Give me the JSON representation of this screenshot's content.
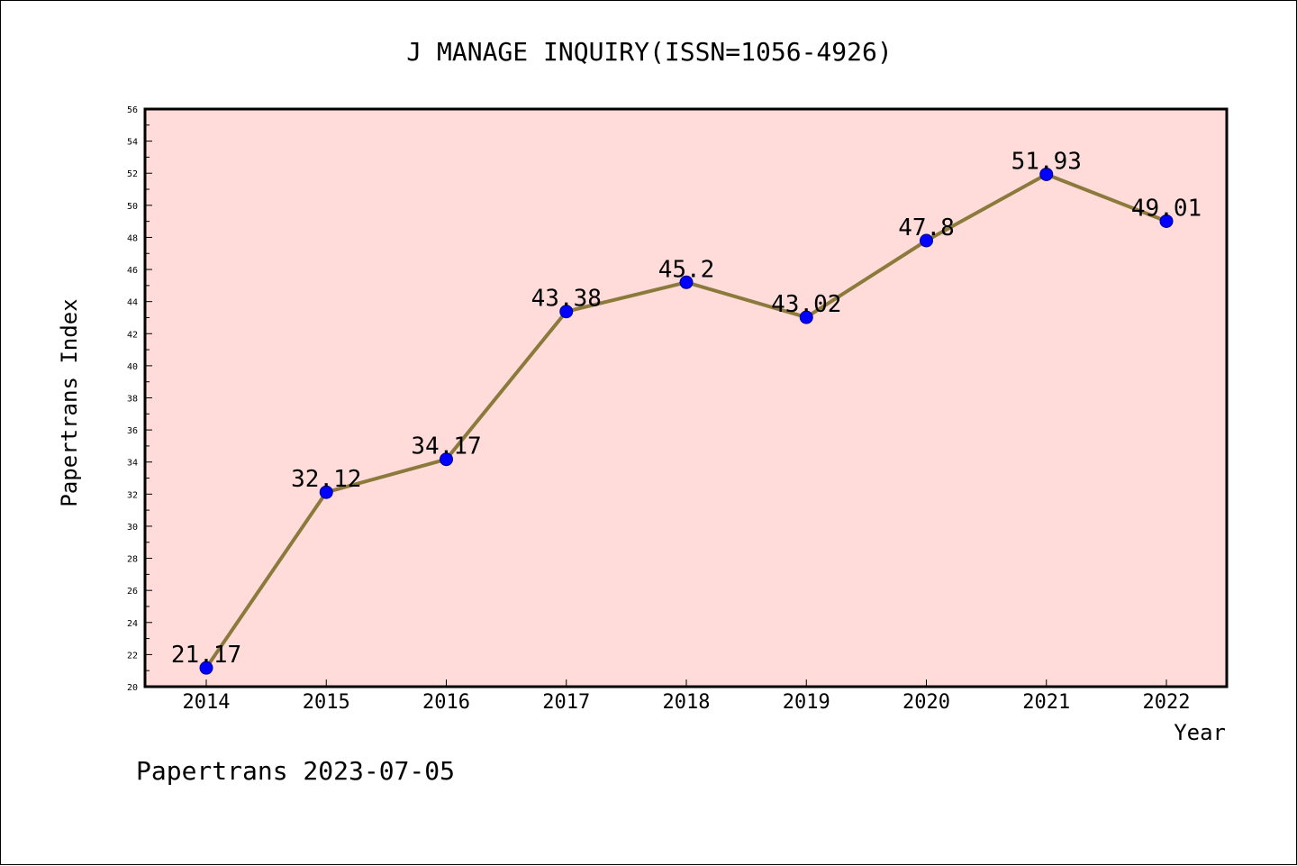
{
  "chart_data": {
    "type": "line",
    "title": "J MANAGE INQUIRY(ISSN=1056-4926)",
    "xlabel": "Year",
    "ylabel": "Papertrans Index",
    "categories": [
      "2014",
      "2015",
      "2016",
      "2017",
      "2018",
      "2019",
      "2020",
      "2021",
      "2022"
    ],
    "series": [
      {
        "values": [
          21.17,
          32.12,
          34.17,
          43.38,
          45.2,
          43.02,
          47.8,
          51.93,
          49.01
        ],
        "labels": [
          "21.17",
          "32.12",
          "34.17",
          "43.38",
          "45.2",
          "43.02",
          "47.8",
          "51.93",
          "49.01"
        ]
      }
    ],
    "ylim": [
      20,
      56
    ],
    "yticks": [
      "20",
      "22",
      "24",
      "26",
      "28",
      "30",
      "32",
      "34",
      "36",
      "38",
      "40",
      "42",
      "44",
      "46",
      "48",
      "50",
      "52",
      "54",
      "56"
    ],
    "grid": false,
    "colors": {
      "plot_background": "#ffdcd9",
      "line": "#8c7a3c",
      "marker": "#0000ff"
    }
  },
  "footer": {
    "text": "Papertrans 2023-07-05"
  }
}
